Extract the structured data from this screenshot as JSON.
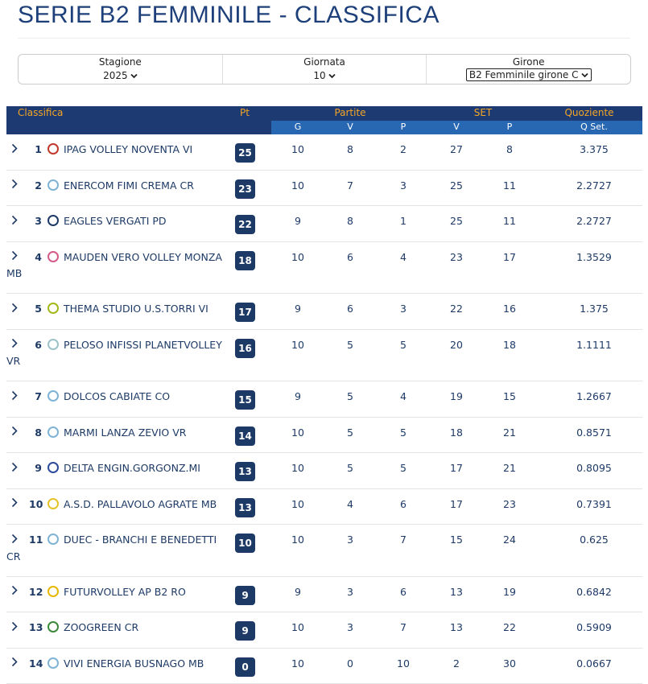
{
  "header": {
    "title": "SERIE B2 FEMMINILE - CLASSIFICA"
  },
  "filters": [
    {
      "label": "Stagione",
      "value": "2025"
    },
    {
      "label": "Giornata",
      "value": "10"
    },
    {
      "label": "Girone",
      "value": "B2 Femminile girone C"
    }
  ],
  "table": {
    "group_headers": {
      "classifica": "Classifica",
      "pt": "Pt",
      "partite": "Partite",
      "set": "SET",
      "quoziente": "Quoziente"
    },
    "sub_headers": {
      "g": "G",
      "v": "V",
      "p": "P",
      "set_v": "V",
      "set_p": "P",
      "q": "Q Set."
    },
    "rows": [
      {
        "rank": 1,
        "team": "IPAG VOLLEY NOVENTA VI",
        "pt": 25,
        "g": 10,
        "v": 8,
        "p": 2,
        "set_v": 27,
        "set_p": 8,
        "q": 3.375
      },
      {
        "rank": 2,
        "team": "ENERCOM FIMI CREMA CR",
        "pt": 23,
        "g": 10,
        "v": 7,
        "p": 3,
        "set_v": 25,
        "set_p": 11,
        "q": 2.2727
      },
      {
        "rank": 3,
        "team": "EAGLES VERGATI PD",
        "pt": 22,
        "g": 9,
        "v": 8,
        "p": 1,
        "set_v": 25,
        "set_p": 11,
        "q": 2.2727
      },
      {
        "rank": 4,
        "team": "MAUDEN VERO VOLLEY MONZA MB",
        "pt": 18,
        "g": 10,
        "v": 6,
        "p": 4,
        "set_v": 23,
        "set_p": 17,
        "q": 1.3529
      },
      {
        "rank": 5,
        "team": "THEMA STUDIO U.S.TORRI VI",
        "pt": 17,
        "g": 9,
        "v": 6,
        "p": 3,
        "set_v": 22,
        "set_p": 16,
        "q": 1.375
      },
      {
        "rank": 6,
        "team": "PELOSO INFISSI PLANETVOLLEY VR",
        "pt": 16,
        "g": 10,
        "v": 5,
        "p": 5,
        "set_v": 20,
        "set_p": 18,
        "q": 1.1111
      },
      {
        "rank": 7,
        "team": "DOLCOS CABIATE CO",
        "pt": 15,
        "g": 9,
        "v": 5,
        "p": 4,
        "set_v": 19,
        "set_p": 15,
        "q": 1.2667
      },
      {
        "rank": 8,
        "team": "MARMI LANZA ZEVIO VR",
        "pt": 14,
        "g": 10,
        "v": 5,
        "p": 5,
        "set_v": 18,
        "set_p": 21,
        "q": 0.8571
      },
      {
        "rank": 9,
        "team": "DELTA ENGIN.GORGONZ.MI",
        "pt": 13,
        "g": 10,
        "v": 5,
        "p": 5,
        "set_v": 17,
        "set_p": 21,
        "q": 0.8095
      },
      {
        "rank": 10,
        "team": "A.S.D. PALLAVOLO AGRATE MB",
        "pt": 13,
        "g": 10,
        "v": 4,
        "p": 6,
        "set_v": 17,
        "set_p": 23,
        "q": 0.7391
      },
      {
        "rank": 11,
        "team": "DUEC - BRANCHI E BENEDETTI CR",
        "pt": 10,
        "g": 10,
        "v": 3,
        "p": 7,
        "set_v": 15,
        "set_p": 24,
        "q": 0.625
      },
      {
        "rank": 12,
        "team": "FUTURVOLLEY AP B2 RO",
        "pt": 9,
        "g": 9,
        "v": 3,
        "p": 6,
        "set_v": 13,
        "set_p": 19,
        "q": 0.6842
      },
      {
        "rank": 13,
        "team": "ZOOGREEN CR",
        "pt": 9,
        "g": 10,
        "v": 3,
        "p": 7,
        "set_v": 13,
        "set_p": 22,
        "q": 0.5909
      },
      {
        "rank": 14,
        "team": "VIVI ENERGIA BUSNAGO MB",
        "pt": 0,
        "g": 10,
        "v": 0,
        "p": 10,
        "set_v": 2,
        "set_p": 30,
        "q": 0.0667
      }
    ]
  }
}
